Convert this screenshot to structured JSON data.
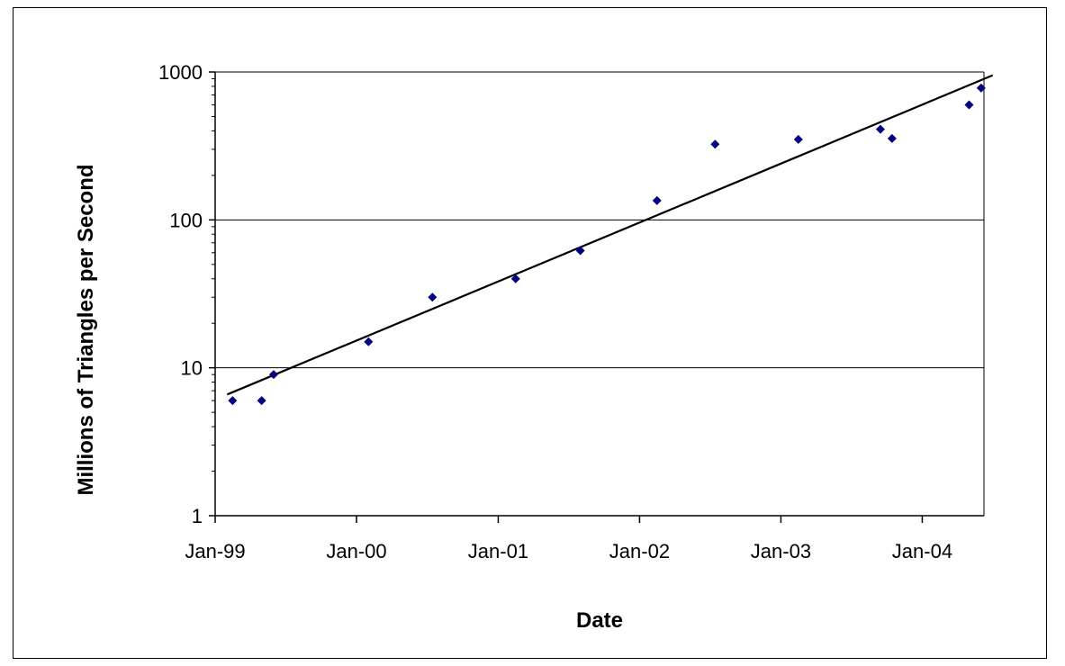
{
  "chart_data": {
    "type": "scatter",
    "title": "",
    "xlabel": "Date",
    "ylabel": "Millions of Triangles per Second",
    "y_scale": "log",
    "ylim": [
      1,
      1000
    ],
    "y_ticks": [
      1,
      10,
      100,
      1000
    ],
    "y_tick_labels": [
      "1",
      "10",
      "100",
      "1000"
    ],
    "xlim": [
      "1999-01-01",
      "2004-07-01"
    ],
    "x_ticks": [
      "1999-01-01",
      "2000-01-01",
      "2001-01-01",
      "2002-01-01",
      "2003-01-01",
      "2004-01-01"
    ],
    "x_tick_labels": [
      "Jan-99",
      "Jan-00",
      "Jan-01",
      "Jan-02",
      "Jan-03",
      "Jan-04"
    ],
    "gridlines": "horizontal major",
    "legend": "none",
    "marker": "diamond",
    "marker_color": "#000080",
    "line_color": "#000000",
    "series": [
      {
        "points": [
          {
            "x": "1999-02-15",
            "y": 6
          },
          {
            "x": "1999-05-01",
            "y": 6
          },
          {
            "x": "1999-06-01",
            "y": 9
          },
          {
            "x": "2000-02-01",
            "y": 15
          },
          {
            "x": "2000-07-15",
            "y": 30
          },
          {
            "x": "2001-02-15",
            "y": 40
          },
          {
            "x": "2001-08-01",
            "y": 62
          },
          {
            "x": "2002-02-15",
            "y": 135
          },
          {
            "x": "2002-07-15",
            "y": 325
          },
          {
            "x": "2003-02-15",
            "y": 350
          },
          {
            "x": "2003-09-15",
            "y": 410
          },
          {
            "x": "2003-10-15",
            "y": 355
          },
          {
            "x": "2004-05-01",
            "y": 600
          },
          {
            "x": "2004-06-01",
            "y": 780
          }
        ]
      }
    ],
    "trendline": {
      "type": "exponential",
      "points": [
        {
          "x": "1999-02-01",
          "y": 6.6
        },
        {
          "x": "2004-07-01",
          "y": 950
        }
      ]
    }
  }
}
